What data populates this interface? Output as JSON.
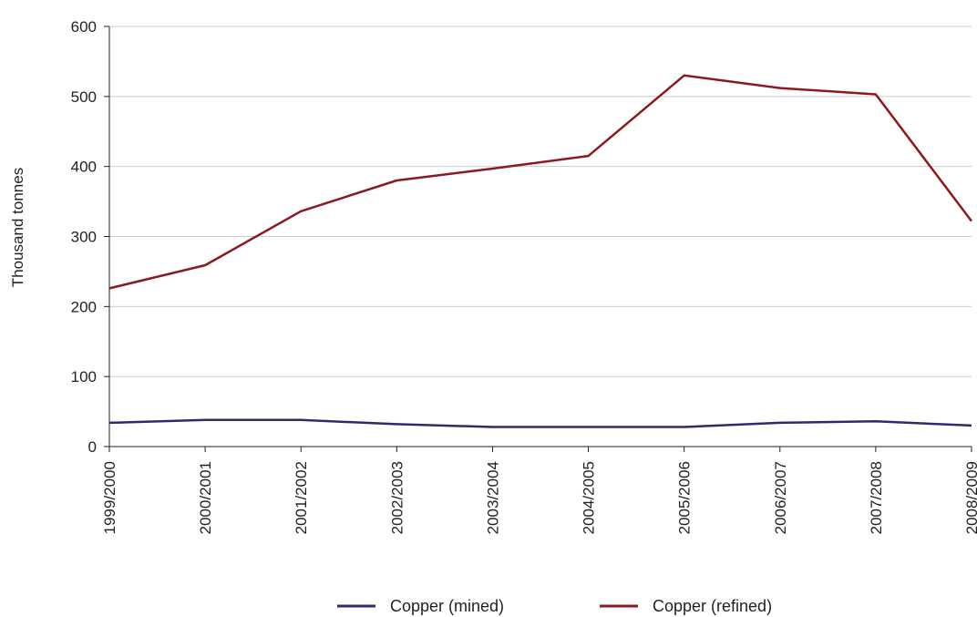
{
  "chart_data": {
    "type": "line",
    "title": "",
    "xlabel": "",
    "ylabel": "Thousand tonnes",
    "ylim": [
      0,
      600
    ],
    "yticks": [
      "0",
      "100",
      "200",
      "300",
      "400",
      "500",
      "600"
    ],
    "grid": true,
    "legend_position": "bottom",
    "categories": [
      "1999/2000",
      "2000/2001",
      "2001/2002",
      "2002/2003",
      "2003/2004",
      "2004/2005",
      "2005/2006",
      "2006/2007",
      "2007/2008",
      "2008/2009"
    ],
    "series": [
      {
        "name": "Copper (mined)",
        "color": "#2e2a6e",
        "values": [
          34,
          38,
          38,
          32,
          28,
          28,
          28,
          34,
          36,
          30
        ]
      },
      {
        "name": "Copper (refined)",
        "color": "#8b1a1e",
        "values": [
          226,
          259,
          336,
          380,
          397,
          415,
          530,
          512,
          503,
          322
        ]
      }
    ]
  }
}
